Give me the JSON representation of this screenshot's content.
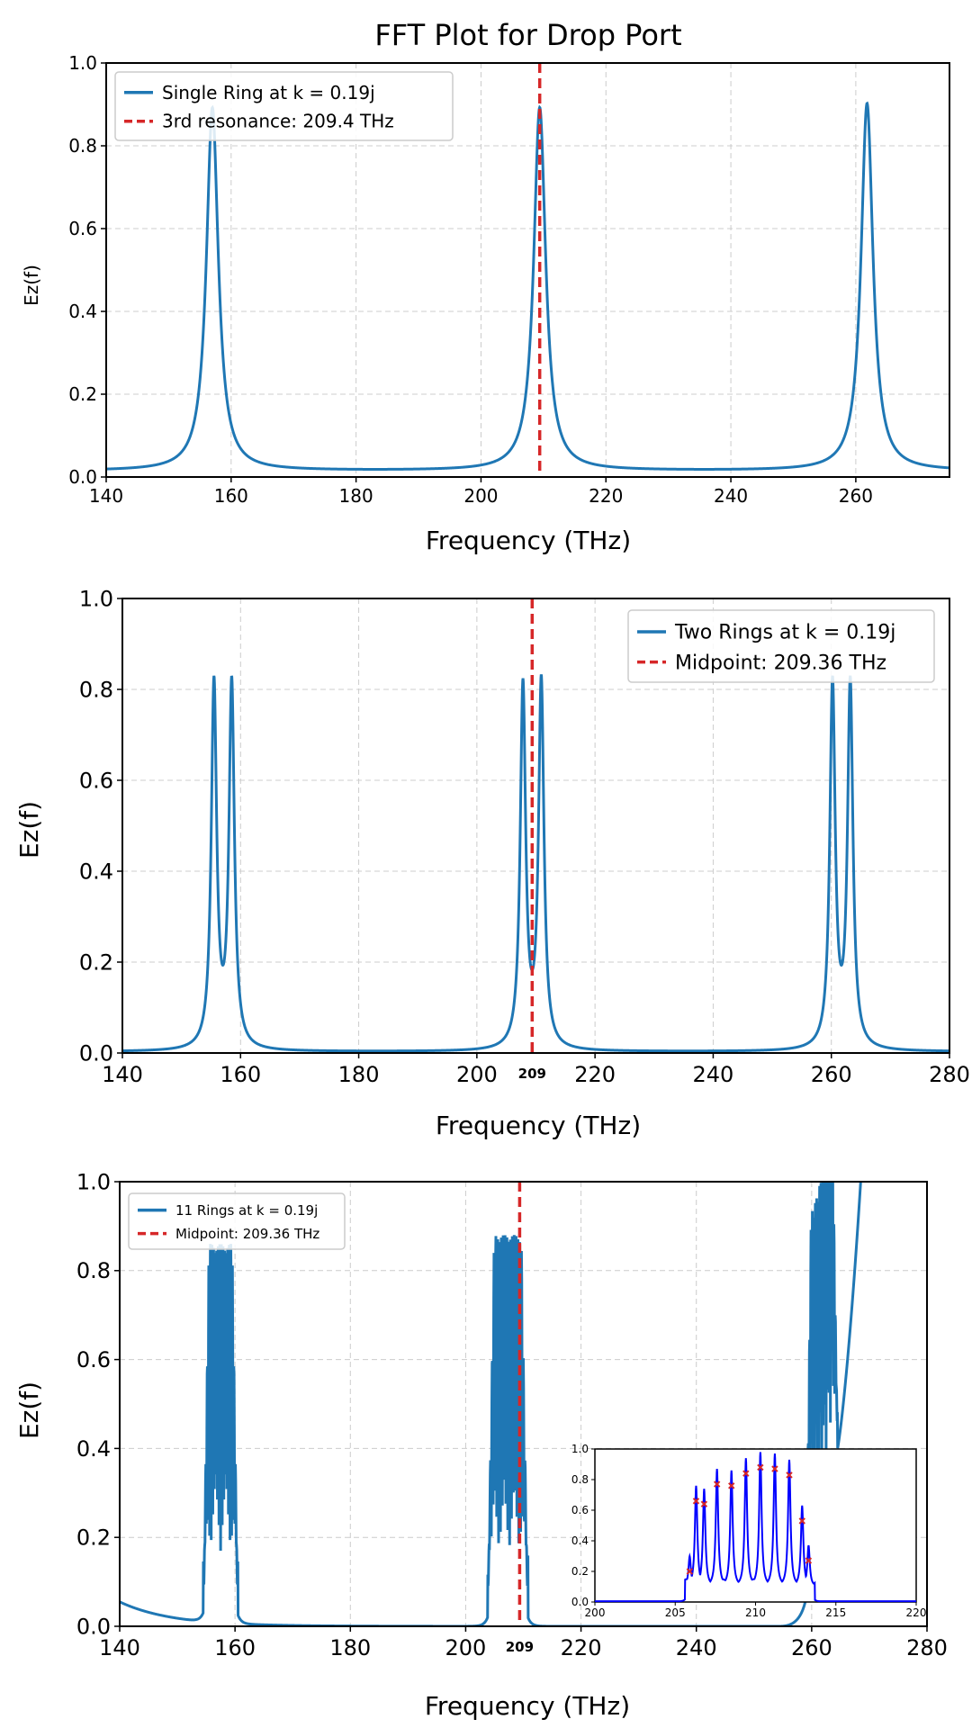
{
  "figure_title": "FFT Plot for Drop Port",
  "colors": {
    "series": "#1f77b4",
    "marker": "#d62728",
    "inset_line": "#0000ff",
    "grid": "#cccccc"
  },
  "chart_data": [
    {
      "type": "line",
      "xlabel": "Frequency (THz)",
      "ylabel": "Ez(f)",
      "xlim": [
        140,
        275
      ],
      "ylim": [
        0,
        1
      ],
      "xticks": [
        140,
        160,
        180,
        200,
        220,
        240,
        260
      ],
      "yticks": [
        0.0,
        0.2,
        0.4,
        0.6,
        0.8,
        1.0
      ],
      "grid": true,
      "legend_position": "top-left",
      "series": [
        {
          "name": "Single Ring at k = 0.19j",
          "baseline": 0.015,
          "peaks": [
            [
              157.0,
              0.89
            ],
            [
              209.4,
              0.89
            ],
            [
              261.8,
              0.9
            ]
          ]
        }
      ],
      "vline": {
        "name": "3rd resonance: 209.4 THz",
        "x": 209.4
      }
    },
    {
      "type": "line",
      "xlabel": "Frequency (THz)",
      "ylabel": "Ez(f)",
      "xlim": [
        140,
        280
      ],
      "ylim": [
        0,
        1
      ],
      "xticks": [
        140,
        160,
        180,
        200,
        220,
        240,
        260,
        280
      ],
      "extra_tick": "209",
      "yticks": [
        0.0,
        0.2,
        0.4,
        0.6,
        0.8,
        1.0
      ],
      "grid": true,
      "legend_position": "top-right",
      "series": [
        {
          "name": "Two Rings at k = 0.19j",
          "baseline": 0.003,
          "peaks": [
            [
              155.5,
              0.89
            ],
            [
              158.5,
              0.89
            ],
            [
              207.8,
              0.885
            ],
            [
              210.9,
              0.895
            ],
            [
              260.2,
              0.89
            ],
            [
              263.2,
              0.89
            ]
          ],
          "valley_min": 0.17
        }
      ],
      "vline": {
        "name": "Midpoint: 209.36 THz",
        "x": 209.36
      }
    },
    {
      "type": "line",
      "xlabel": "Frequency (THz)",
      "ylabel": "Ez(f)",
      "xlim": [
        140,
        280
      ],
      "ylim": [
        0,
        1
      ],
      "xticks": [
        140,
        160,
        180,
        200,
        220,
        240,
        260,
        280
      ],
      "extra_tick": "209",
      "yticks": [
        0.0,
        0.2,
        0.4,
        0.6,
        0.8,
        1.0
      ],
      "grid": true,
      "legend_position": "top-left",
      "series": [
        {
          "name": "11 Rings at k = 0.19j",
          "bands": [
            [
              154.5,
              160.5,
              0.86
            ],
            [
              203.8,
              210.8,
              0.88
            ],
            [
              259.0,
              264.5,
              0.86
            ]
          ],
          "band_floor": 0.17,
          "left_edge": 0.055,
          "rise_end": [
            268.5,
            1.0
          ]
        }
      ],
      "vline": {
        "name": "Midpoint: 209.36 THz",
        "x": 209.36
      },
      "inset": {
        "type": "line",
        "xlim": [
          200,
          220
        ],
        "ylim": [
          0,
          1
        ],
        "xticks": [
          "200",
          "205",
          "210",
          "215",
          "220"
        ],
        "yticks": [
          "0.0",
          "0.2",
          "0.4",
          "0.6",
          "0.8",
          "1.0"
        ],
        "peaks": [
          [
            205.9,
            0.2
          ],
          [
            206.3,
            0.66
          ],
          [
            206.8,
            0.64
          ],
          [
            207.6,
            0.77
          ],
          [
            208.5,
            0.76
          ],
          [
            209.4,
            0.84
          ],
          [
            210.3,
            0.88
          ],
          [
            211.2,
            0.87
          ],
          [
            212.1,
            0.83
          ],
          [
            212.9,
            0.53
          ],
          [
            213.3,
            0.27
          ]
        ]
      }
    }
  ]
}
